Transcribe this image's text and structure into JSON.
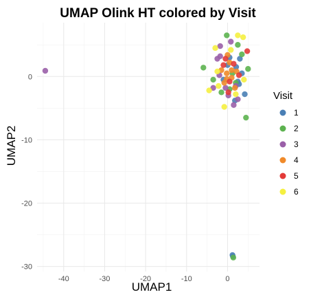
{
  "chart_data": {
    "type": "scatter",
    "title": "UMAP Olink HT colored by Visit",
    "xlabel": "UMAP1",
    "ylabel": "UMAP2",
    "xlim": [
      -46.5,
      7.8
    ],
    "ylim": [
      -30.8,
      8.5
    ],
    "x_ticks": [
      -40,
      -30,
      -20,
      -10,
      0
    ],
    "y_ticks": [
      0,
      -10,
      -20,
      -30
    ],
    "grid": true,
    "legend": {
      "title": "Visit",
      "position": "right"
    },
    "colors": {
      "1": "#4a7fb5",
      "2": "#5cb24f",
      "3": "#9a5fa8",
      "4": "#f08a2a",
      "5": "#e33a38",
      "6": "#f5f040"
    },
    "series": [
      {
        "name": "1",
        "points": [
          [
            1.2,
            -28.2
          ],
          [
            1.3,
            -28.4
          ],
          [
            2.1,
            1.5
          ],
          [
            3.5,
            0.5
          ],
          [
            2.8,
            -1.2
          ],
          [
            0.5,
            3.0
          ],
          [
            -1.0,
            -0.5
          ],
          [
            4.2,
            -2.8
          ],
          [
            1.8,
            -3.8
          ],
          [
            3.0,
            2.8
          ],
          [
            0.0,
            1.8
          ],
          [
            2.5,
            -0.8
          ]
        ]
      },
      {
        "name": "2",
        "points": [
          [
            1.4,
            -28.6
          ],
          [
            -0.2,
            6.5
          ],
          [
            2.5,
            5.0
          ],
          [
            -5.9,
            1.4
          ],
          [
            4.5,
            -6.5
          ],
          [
            5.0,
            1.2
          ],
          [
            3.5,
            3.5
          ],
          [
            -1.5,
            -2.5
          ],
          [
            2.0,
            -1.0
          ],
          [
            -3.5,
            -0.5
          ],
          [
            0.5,
            -2.0
          ],
          [
            1.2,
            0.5
          ]
        ]
      },
      {
        "name": "3",
        "points": [
          [
            -44.5,
            0.9
          ],
          [
            -2.5,
            2.8
          ],
          [
            -1.8,
            4.8
          ],
          [
            0.8,
            5.5
          ],
          [
            -3.5,
            -1.8
          ],
          [
            2.5,
            -3.6
          ],
          [
            -0.5,
            -1.8
          ],
          [
            1.5,
            -4.5
          ],
          [
            -2.0,
            0.2
          ],
          [
            0.2,
            -3.0
          ],
          [
            -1.8,
            3.2
          ],
          [
            2.0,
            -1.5
          ]
        ]
      },
      {
        "name": "4",
        "points": [
          [
            -1.5,
            1.0
          ],
          [
            0.5,
            2.2
          ],
          [
            1.0,
            -0.2
          ],
          [
            -0.8,
            -1.0
          ],
          [
            2.2,
            0.8
          ],
          [
            1.8,
            -1.8
          ],
          [
            -0.2,
            0.5
          ],
          [
            0.0,
            3.4
          ],
          [
            -0.2,
            -0.4
          ],
          [
            1.0,
            1.0
          ]
        ]
      },
      {
        "name": "5",
        "points": [
          [
            4.8,
            4.0
          ],
          [
            0.5,
            -0.8
          ],
          [
            -0.5,
            2.8
          ],
          [
            1.5,
            2.0
          ],
          [
            2.8,
            0.2
          ],
          [
            0.2,
            -2.5
          ],
          [
            -1.0,
            1.8
          ]
        ]
      },
      {
        "name": "6",
        "points": [
          [
            2.5,
            6.5
          ],
          [
            3.8,
            6.2
          ],
          [
            -3.0,
            4.5
          ],
          [
            -4.5,
            -2.2
          ],
          [
            -0.8,
            -4.8
          ],
          [
            4.0,
            -0.5
          ],
          [
            -2.2,
            -1.5
          ],
          [
            0.8,
            4.2
          ],
          [
            2.0,
            -2.8
          ],
          [
            -2.5,
            0.8
          ]
        ]
      }
    ]
  }
}
